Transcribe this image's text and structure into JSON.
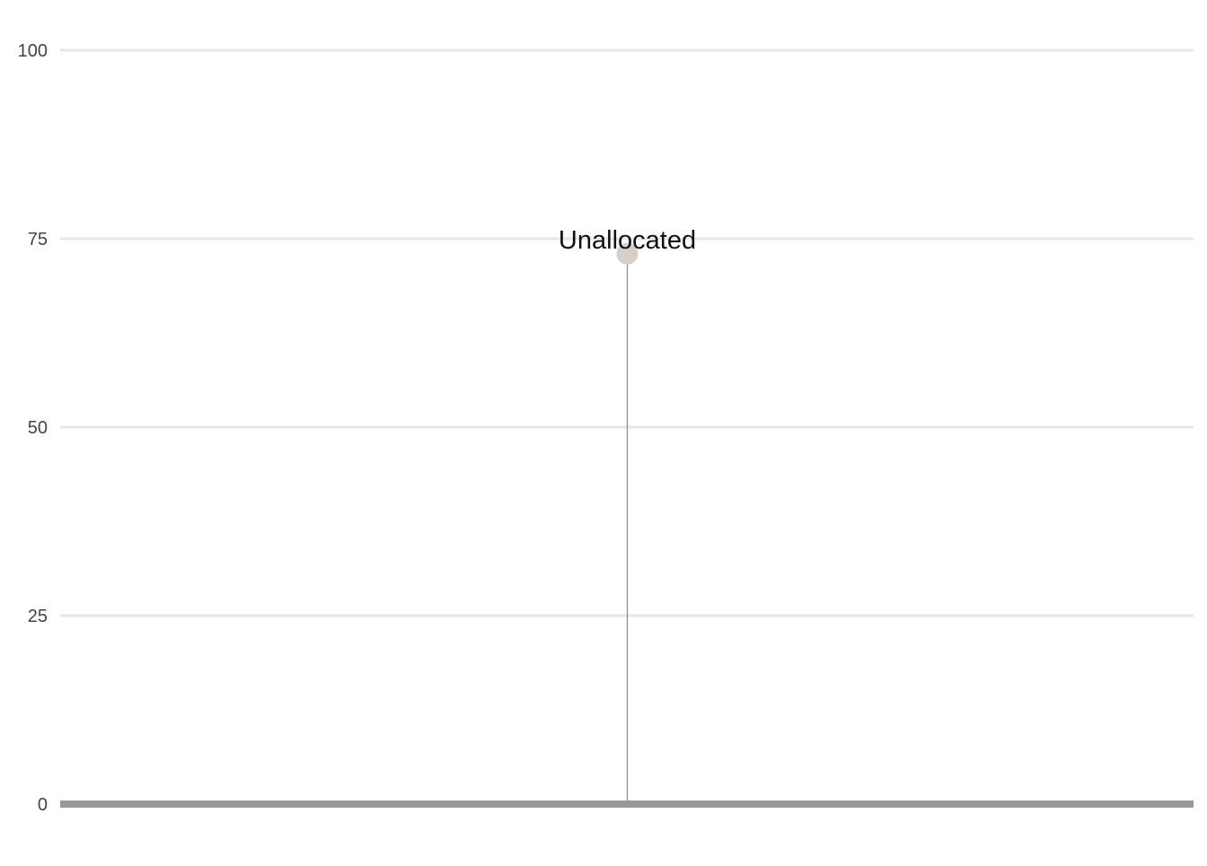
{
  "chart_data": {
    "type": "lollipop",
    "title": "",
    "xlabel": "",
    "ylabel": "",
    "ylim": [
      0,
      100
    ],
    "y_ticks": [
      0,
      25,
      50,
      75,
      100
    ],
    "grid": true,
    "legend": "none",
    "points": [
      {
        "label": "Unallocated",
        "value": 73
      }
    ],
    "colors": {
      "gridline": "#e6e6e6",
      "baseline": "#999999",
      "stem": "#8a8a8a",
      "marker": "#d8cfc8"
    }
  }
}
